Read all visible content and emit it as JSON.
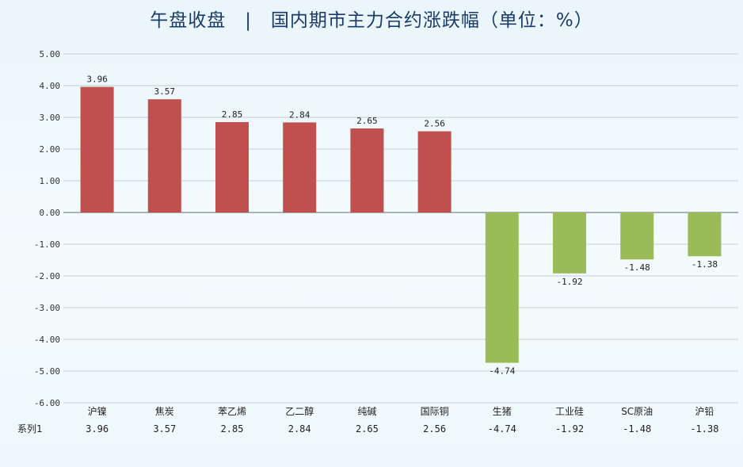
{
  "chart_data": {
    "type": "bar",
    "title": "午盘收盘　|　国内期市主力合约涨跌幅（单位：%）",
    "categories": [
      "沪镍",
      "焦炭",
      "苯乙烯",
      "乙二醇",
      "纯碱",
      "国际铜",
      "生猪",
      "工业硅",
      "SC原油",
      "沪铅"
    ],
    "series": [
      {
        "name": "系列1",
        "values": [
          3.96,
          3.57,
          2.85,
          2.84,
          2.65,
          2.56,
          -4.74,
          -1.92,
          -1.48,
          -1.38
        ]
      }
    ],
    "value_labels": [
      "3.96",
      "3.57",
      "2.85",
      "2.84",
      "2.65",
      "2.56",
      "-4.74",
      "-1.92",
      "-1.48",
      "-1.38"
    ],
    "yticks": [
      "5.00",
      "4.00",
      "3.00",
      "2.00",
      "1.00",
      "0.00",
      "-1.00",
      "-2.00",
      "-3.00",
      "-4.00",
      "-5.00",
      "-6.00"
    ],
    "ylim": [
      -6,
      5
    ],
    "grid": true,
    "colors": {
      "positive": "#c0504d",
      "negative": "#9bbb59",
      "grid": "#c6cdd6",
      "axis": "#5b6b7c"
    }
  }
}
